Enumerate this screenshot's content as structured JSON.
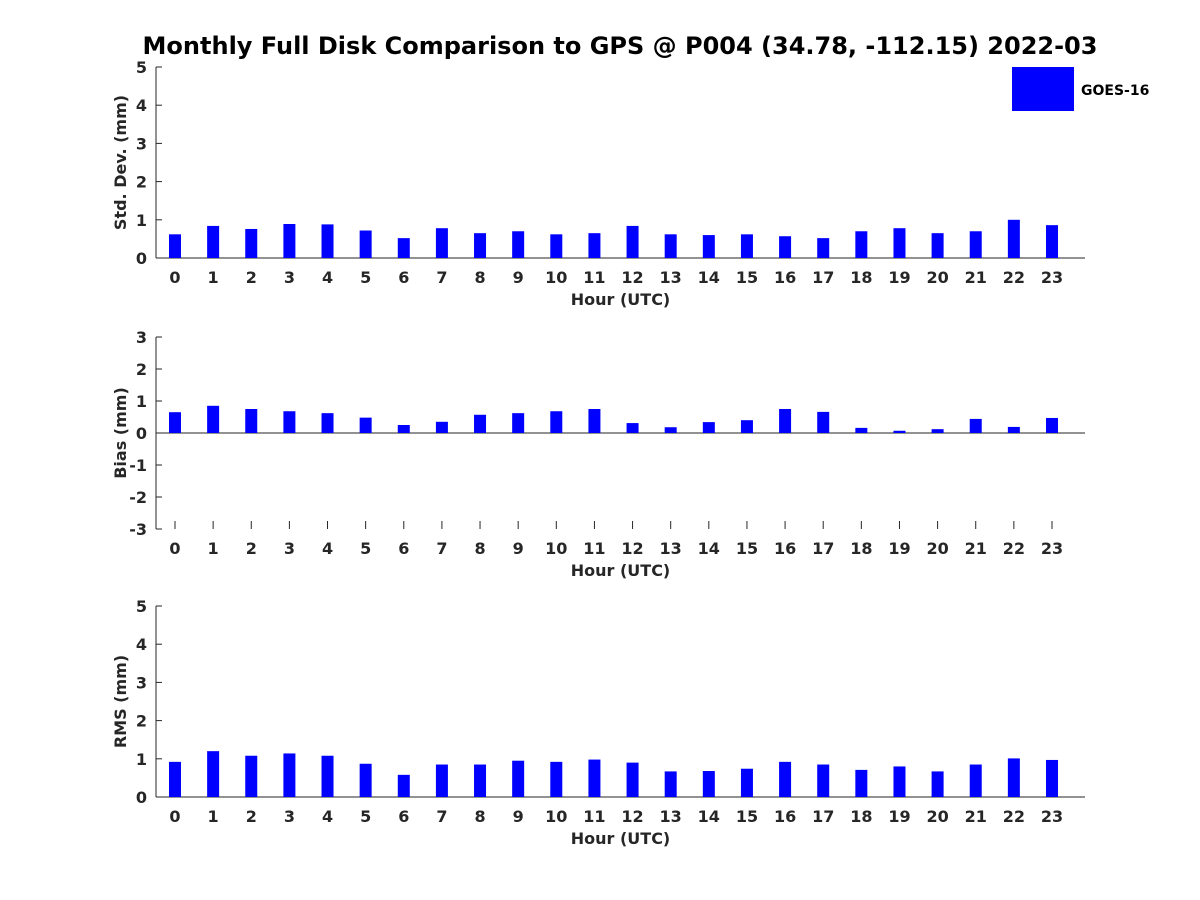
{
  "title": "Monthly Full Disk Comparison to GPS @ P004 (34.78, -112.15) 2022-03",
  "legend": {
    "label": "GOES-16",
    "color": "#0000ff",
    "placement": "top-right"
  },
  "chart_data": [
    {
      "type": "bar",
      "name": "std-dev",
      "xlabel": "Hour (UTC)",
      "ylabel": "Std. Dev. (mm)",
      "ylim": [
        0,
        5
      ],
      "yticks": [
        0,
        1,
        2,
        3,
        4,
        5
      ],
      "categories": [
        "0",
        "1",
        "2",
        "3",
        "4",
        "5",
        "6",
        "7",
        "8",
        "9",
        "10",
        "11",
        "12",
        "13",
        "14",
        "15",
        "16",
        "17",
        "18",
        "19",
        "20",
        "21",
        "22",
        "23"
      ],
      "series": [
        {
          "name": "GOES-16",
          "color": "#0000ff",
          "values": [
            0.62,
            0.84,
            0.76,
            0.89,
            0.88,
            0.72,
            0.52,
            0.78,
            0.65,
            0.7,
            0.62,
            0.65,
            0.84,
            0.62,
            0.6,
            0.62,
            0.57,
            0.52,
            0.7,
            0.78,
            0.65,
            0.7,
            1.0,
            0.86
          ]
        }
      ],
      "grid": false
    },
    {
      "type": "bar",
      "name": "bias",
      "xlabel": "Hour (UTC)",
      "ylabel": "Bias (mm)",
      "ylim": [
        -3,
        3
      ],
      "yticks": [
        -3,
        -2,
        -1,
        0,
        1,
        2,
        3
      ],
      "categories": [
        "0",
        "1",
        "2",
        "3",
        "4",
        "5",
        "6",
        "7",
        "8",
        "9",
        "10",
        "11",
        "12",
        "13",
        "14",
        "15",
        "16",
        "17",
        "18",
        "19",
        "20",
        "21",
        "22",
        "23"
      ],
      "series": [
        {
          "name": "GOES-16",
          "color": "#0000ff",
          "values": [
            0.65,
            0.85,
            0.75,
            0.68,
            0.62,
            0.48,
            0.25,
            0.35,
            0.57,
            0.62,
            0.68,
            0.75,
            0.31,
            0.18,
            0.34,
            0.4,
            0.75,
            0.66,
            0.16,
            0.07,
            0.12,
            0.44,
            0.19,
            0.47
          ]
        }
      ],
      "grid": false
    },
    {
      "type": "bar",
      "name": "rms",
      "xlabel": "Hour (UTC)",
      "ylabel": "RMS (mm)",
      "ylim": [
        0,
        5
      ],
      "yticks": [
        0,
        1,
        2,
        3,
        4,
        5
      ],
      "categories": [
        "0",
        "1",
        "2",
        "3",
        "4",
        "5",
        "6",
        "7",
        "8",
        "9",
        "10",
        "11",
        "12",
        "13",
        "14",
        "15",
        "16",
        "17",
        "18",
        "19",
        "20",
        "21",
        "22",
        "23"
      ],
      "series": [
        {
          "name": "GOES-16",
          "color": "#0000ff",
          "values": [
            0.92,
            1.2,
            1.08,
            1.14,
            1.08,
            0.87,
            0.58,
            0.85,
            0.85,
            0.95,
            0.92,
            0.98,
            0.9,
            0.67,
            0.68,
            0.74,
            0.92,
            0.85,
            0.71,
            0.8,
            0.67,
            0.85,
            1.01,
            0.97
          ]
        }
      ],
      "grid": false
    }
  ]
}
